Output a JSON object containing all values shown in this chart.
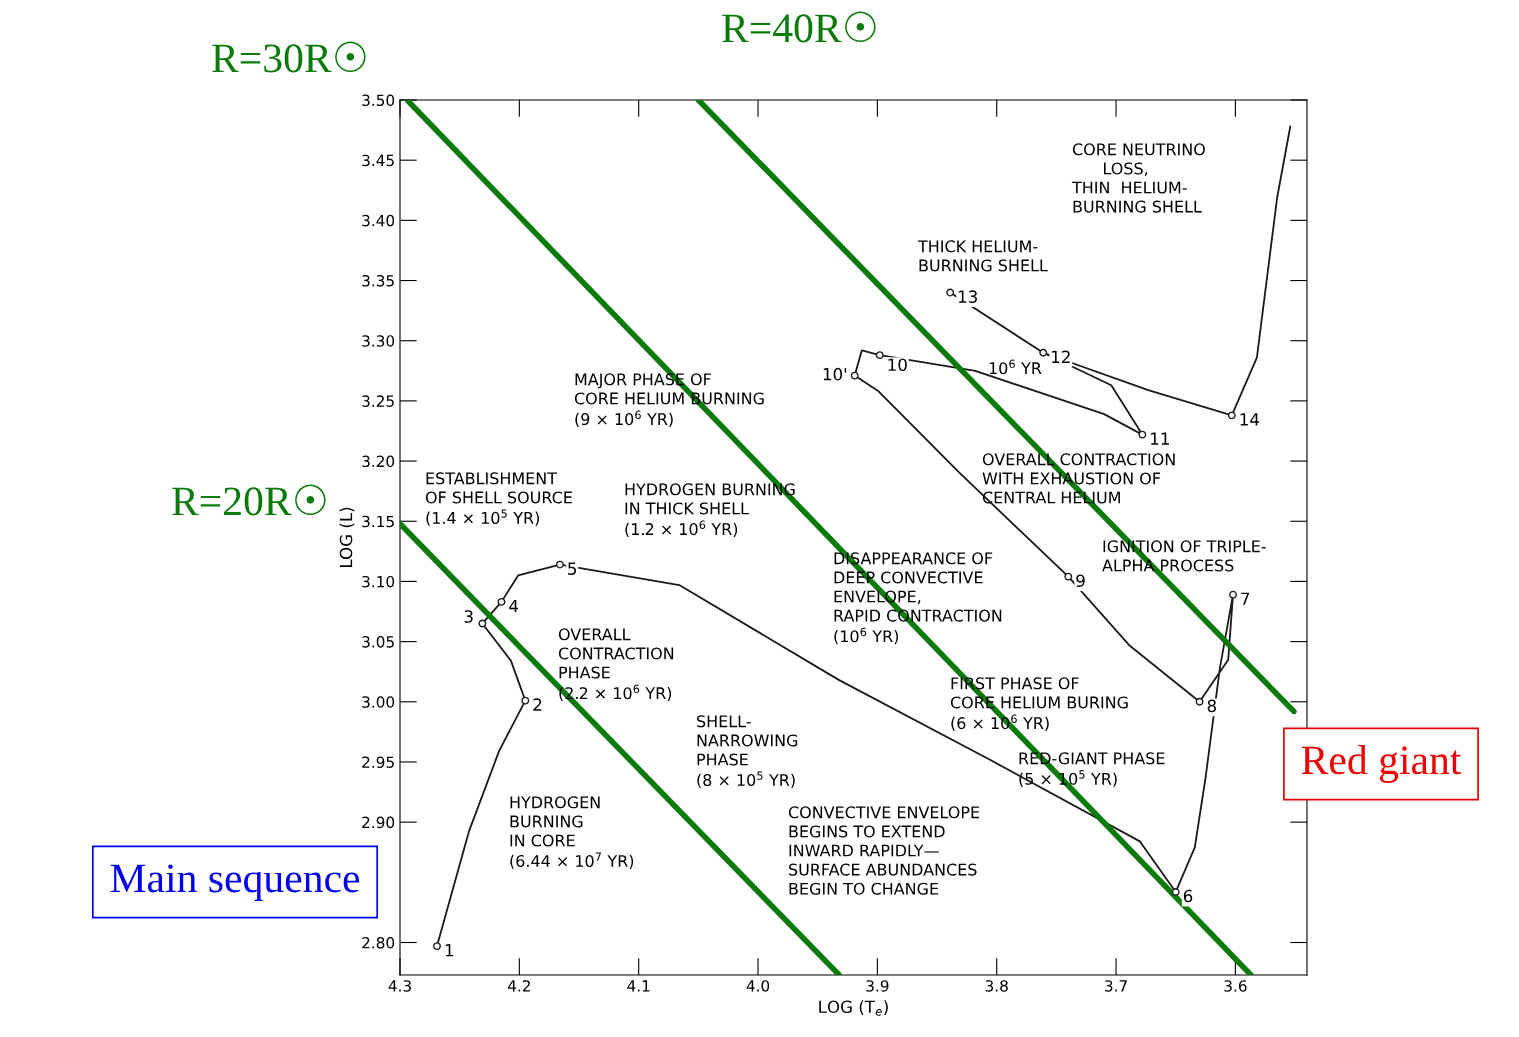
{
  "chart_data": {
    "type": "line",
    "xlabel": "LOG (T$_{e}$)",
    "ylabel": "LOG (L)",
    "xlim": [
      4.3,
      3.54
    ],
    "ylim": [
      2.773,
      3.5
    ],
    "xticks": [
      4.3,
      4.2,
      4.1,
      {
        "value": 4.0,
        "label": "4.0"
      },
      3.9,
      3.8,
      3.7,
      3.6
    ],
    "yticks": [
      {
        "value": 2.8,
        "label": "2.80"
      },
      {
        "value": 2.9,
        "label": "2.90"
      },
      {
        "value": 2.95,
        "label": "2.95"
      },
      {
        "value": 3.0,
        "label": "3.00"
      },
      {
        "value": 3.05,
        "label": "3.05"
      },
      {
        "value": 3.1,
        "label": "3.10"
      },
      {
        "value": 3.15,
        "label": "3.15"
      },
      {
        "value": 3.2,
        "label": "3.20"
      },
      {
        "value": 3.25,
        "label": "3.25"
      },
      {
        "value": 3.3,
        "label": "3.30"
      },
      {
        "value": 3.35,
        "label": "3.35"
      },
      {
        "value": 3.4,
        "label": "3.40"
      },
      {
        "value": 3.45,
        "label": "3.45"
      },
      {
        "value": 3.5,
        "label": "3.50"
      }
    ],
    "grid": false,
    "legend": false,
    "marker": "none",
    "line_style": "solid",
    "series": [
      {
        "color": "#1a1a1a",
        "x": [
          4.269,
          4.242,
          4.217,
          4.195,
          4.207,
          4.231,
          4.215,
          4.201,
          4.166,
          4.066,
          3.932,
          3.806,
          3.68,
          3.65,
          3.634,
          3.625,
          3.613,
          3.602,
          3.606,
          3.63,
          3.689,
          3.74,
          3.832,
          3.899,
          3.919,
          3.913,
          3.898,
          3.818,
          3.71,
          3.678,
          3.704,
          3.761,
          3.839,
          3.761,
          3.673,
          3.603,
          3.582,
          3.565,
          3.554
        ],
        "values": [
          2.797,
          2.893,
          2.959,
          3.001,
          3.034,
          3.065,
          3.083,
          3.105,
          3.114,
          3.097,
          3.018,
          2.952,
          2.884,
          2.842,
          2.879,
          2.937,
          3.028,
          3.089,
          3.035,
          3.0,
          3.047,
          3.104,
          3.191,
          3.258,
          3.271,
          3.292,
          3.288,
          3.275,
          3.239,
          3.222,
          3.263,
          3.29,
          3.34,
          3.29,
          3.259,
          3.238,
          3.286,
          3.419,
          3.478
        ]
      },
      {
        "type": "scatter",
        "color": "#1a1a1a",
        "marker": "circle",
        "x": [
          4.269,
          4.195,
          4.231,
          4.215,
          4.166,
          3.65,
          3.602,
          3.63,
          3.74,
          3.919,
          3.898,
          3.678,
          3.761,
          3.839,
          3.603
        ],
        "values": [
          2.797,
          3.001,
          3.065,
          3.083,
          3.114,
          2.842,
          3.089,
          3.0,
          3.104,
          3.271,
          3.288,
          3.222,
          3.29,
          3.34,
          3.238
        ]
      },
      {
        "name": "R=20R☉",
        "color": "#0a7a0a",
        "x": [
          4.3,
          3.932
        ],
        "values": [
          3.148,
          2.773
        ]
      },
      {
        "name": "R=30R☉",
        "color": "#0a7a0a",
        "x": [
          4.294,
          3.587
        ],
        "values": [
          3.5,
          2.773
        ]
      },
      {
        "name": "R=40R☉",
        "color": "#0a7a0a",
        "x": [
          4.05,
          3.551
        ],
        "values": [
          3.5,
          2.992
        ]
      }
    ],
    "annotations": [
      {
        "text": "1",
        "x": 4.269,
        "y": 2.797
      },
      {
        "text": "2",
        "x": 4.195,
        "y": 3.001
      },
      {
        "text": "3",
        "x": 4.231,
        "y": 3.065
      },
      {
        "text": "4",
        "x": 4.215,
        "y": 3.083
      },
      {
        "text": "5",
        "x": 4.166,
        "y": 3.114
      },
      {
        "text": "6",
        "x": 3.65,
        "y": 2.842
      },
      {
        "text": "7",
        "x": 3.602,
        "y": 3.089
      },
      {
        "text": "8",
        "x": 3.63,
        "y": 3.0
      },
      {
        "text": "9",
        "x": 3.74,
        "y": 3.104
      },
      {
        "text": "10'",
        "x": 3.919,
        "y": 3.271
      },
      {
        "text": "10",
        "x": 3.898,
        "y": 3.288
      },
      {
        "text": "11",
        "x": 3.678,
        "y": 3.222
      },
      {
        "text": "12",
        "x": 3.761,
        "y": 3.29
      },
      {
        "text": "13",
        "x": 3.839,
        "y": 3.34
      },
      {
        "text": "14",
        "x": 3.603,
        "y": 3.238
      },
      "CORE NEUTRINO\n      LOSS,\nTHIN  HELIUM-\nBURNING SHELL",
      "THICK HELIUM-\nBURNING SHELL",
      "MAJOR PHASE OF\nCORE HELIUM BURNING\n(9 × 10$^{6}$ YR)",
      "10$^{6}$ YR",
      "OVERALL CONTRACTION\nWITH EXHAUSTION OF\nCENTRAL HELIUM",
      "ESTABLISHMENT\nOF SHELL SOURCE\n(1.4 × 10$^{5}$ YR)",
      "HYDROGEN BURNING\nIN THICK SHELL\n(1.2 × 10$^{6}$ YR)",
      "IGNITION OF TRIPLE-\nALPHA PROCESS",
      "DISAPPEARANCE OF\nDEEP CONVECTIVE\nENVELOPE,\nRAPID CONTRACTION\n(10$^{6}$ YR)",
      "OVERALL\nCONTRACTION\nPHASE\n(2.2 × 10$^{6}$ YR)",
      "FIRST PHASE OF\nCORE HELIUM BURING\n(6 × 10$^{6}$ YR)",
      "SHELL-\nNARROWING\nPHASE\n(8 × 10$^{5}$ YR)",
      "RED-GIANT PHASE\n(5 × 10$^{5}$ YR)",
      "HYDROGEN\nBURNING\nIN CORE\n(6.44 × 10$^{7}$ YR)",
      "CONVECTIVE ENVELOPE\nBEGINS TO EXTEND\nINWARD RAPIDLY—\nSURFACE ABUNDANCES\nBEGIN TO CHANGE",
      "Main sequence",
      "Red giant"
    ]
  }
}
